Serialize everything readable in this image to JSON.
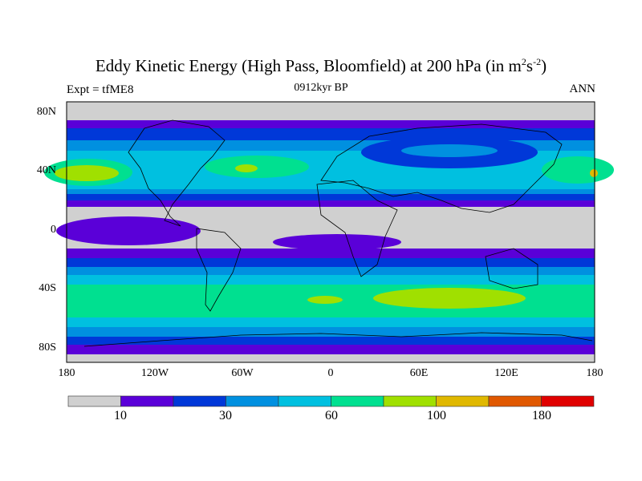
{
  "chart_data": {
    "type": "heatmap",
    "title": "Eddy Kinetic Energy (High Pass, Bloomfield) at 200 hPa (in m",
    "title_units_sup1": "2",
    "title_units_mid": "s",
    "title_units_sup2": "-2",
    "title_end": ")",
    "subtitle": "0912kyr BP",
    "left_label": "Expt = tfME8",
    "right_label": "ANN",
    "xlim": [
      -180,
      180
    ],
    "ylim": [
      -90,
      90
    ],
    "x_ticks": [
      "180",
      "120W",
      "60W",
      "0",
      "60E",
      "120E",
      "180"
    ],
    "y_ticks": [
      "80N",
      "40N",
      "0",
      "40S",
      "80S"
    ],
    "levels": [
      10,
      20,
      30,
      45,
      60,
      80,
      100,
      140,
      180
    ],
    "colorbar_labels": [
      "10",
      "30",
      "60",
      "100",
      "180"
    ],
    "colors": [
      "#d0d0d0",
      "#5a00d8",
      "#0038d8",
      "#0090e0",
      "#00c0e0",
      "#00e090",
      "#a0e000",
      "#e0b800",
      "#e05800",
      "#e00000"
    ]
  }
}
